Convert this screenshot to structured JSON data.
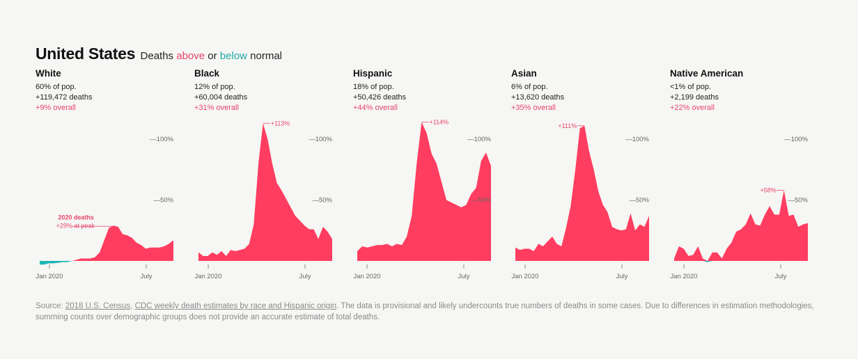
{
  "header": {
    "title": "United States",
    "subtitle_start": "Deaths ",
    "subtitle_above": "above",
    "subtitle_or": " or ",
    "subtitle_below": "below",
    "subtitle_end": " normal"
  },
  "colors": {
    "above": "#ff3d60",
    "below": "#1fb5b5",
    "accent_text": "#e8456b"
  },
  "source": {
    "prefix": "Source: ",
    "link1": "2018 U.S. Census",
    "sep": ", ",
    "link2": "CDC weekly death estimates by race and Hispanic origin",
    "rest": ". The data is provisional and likely undercounts true numbers of deaths in some cases. Due to differences in estimation methodologies, summing counts over demographic groups does not provide an accurate estimate of total deaths."
  },
  "chart_data": [
    {
      "type": "area",
      "title": "White",
      "pop": "60% of pop.",
      "deaths": "+119,472 deaths",
      "overall": "+9% overall",
      "x_ticks": [
        "Jan 2020",
        "July"
      ],
      "y_ticks": [
        "—100%",
        "—50%"
      ],
      "ylim": [
        -5,
        115
      ],
      "annotation_bold": "2020 deaths",
      "annotation": "+29% at peak",
      "values": [
        -3,
        -3,
        -2,
        -2,
        -1.5,
        -1,
        -1,
        0,
        1,
        2,
        2,
        2,
        3,
        7,
        17,
        27,
        29,
        28,
        22,
        21,
        19,
        15,
        13,
        10,
        11,
        11,
        11,
        12,
        14,
        17
      ]
    },
    {
      "type": "area",
      "title": "Black",
      "pop": "12% of pop.",
      "deaths": "+60,004 deaths",
      "overall": "+31% overall",
      "x_ticks": [
        "Jan 2020",
        "July"
      ],
      "y_ticks": [
        "—100%",
        "—50%"
      ],
      "ylim": [
        -5,
        115
      ],
      "annotation": "+113%",
      "values": [
        7,
        4,
        4,
        7,
        5,
        8,
        4,
        9,
        8,
        9,
        10,
        14,
        30,
        80,
        113,
        100,
        80,
        64,
        58,
        51,
        44,
        37,
        33,
        29,
        26,
        26,
        18,
        28,
        24,
        18
      ]
    },
    {
      "type": "area",
      "title": "Hispanic",
      "pop": "18% of pop.",
      "deaths": "+50,426 deaths",
      "overall": "+44% overall",
      "x_ticks": [
        "Jan 2020",
        "July"
      ],
      "y_ticks": [
        "—100%",
        "—50%"
      ],
      "ylim": [
        -5,
        115
      ],
      "annotation": "+114%",
      "values": [
        8,
        12,
        11,
        12,
        13,
        13,
        14,
        12,
        14,
        13,
        20,
        37,
        80,
        114,
        105,
        88,
        80,
        65,
        50,
        48,
        46,
        44,
        46,
        55,
        60,
        82,
        89,
        78
      ]
    },
    {
      "type": "area",
      "title": "Asian",
      "pop": "6% of pop.",
      "deaths": "+13,620 deaths",
      "overall": "+35% overall",
      "x_ticks": [
        "Jan 2020",
        "July"
      ],
      "y_ticks": [
        "—100%",
        "—50%"
      ],
      "ylim": [
        -5,
        115
      ],
      "annotation": "+111%",
      "values": [
        11,
        9,
        10,
        10,
        8,
        14,
        12,
        16,
        20,
        14,
        12,
        27,
        45,
        75,
        109,
        111,
        90,
        75,
        57,
        46,
        40,
        28,
        26,
        25,
        26,
        39,
        25,
        30,
        28,
        37
      ]
    },
    {
      "type": "area",
      "title": "Native American",
      "pop": "<1% of pop.",
      "deaths": "+2,199 deaths",
      "overall": "+22% overall",
      "x_ticks": [
        "Jan 2020",
        "July"
      ],
      "y_ticks": [
        "—100%",
        "—50%"
      ],
      "ylim": [
        -5,
        115
      ],
      "annotation": "+58%",
      "values": [
        2,
        12,
        10,
        4,
        5,
        12,
        2,
        -1,
        7,
        7,
        2,
        10,
        15,
        24,
        26,
        30,
        39,
        30,
        29,
        38,
        45,
        38,
        38,
        58,
        37,
        38,
        28,
        30,
        31
      ]
    }
  ]
}
